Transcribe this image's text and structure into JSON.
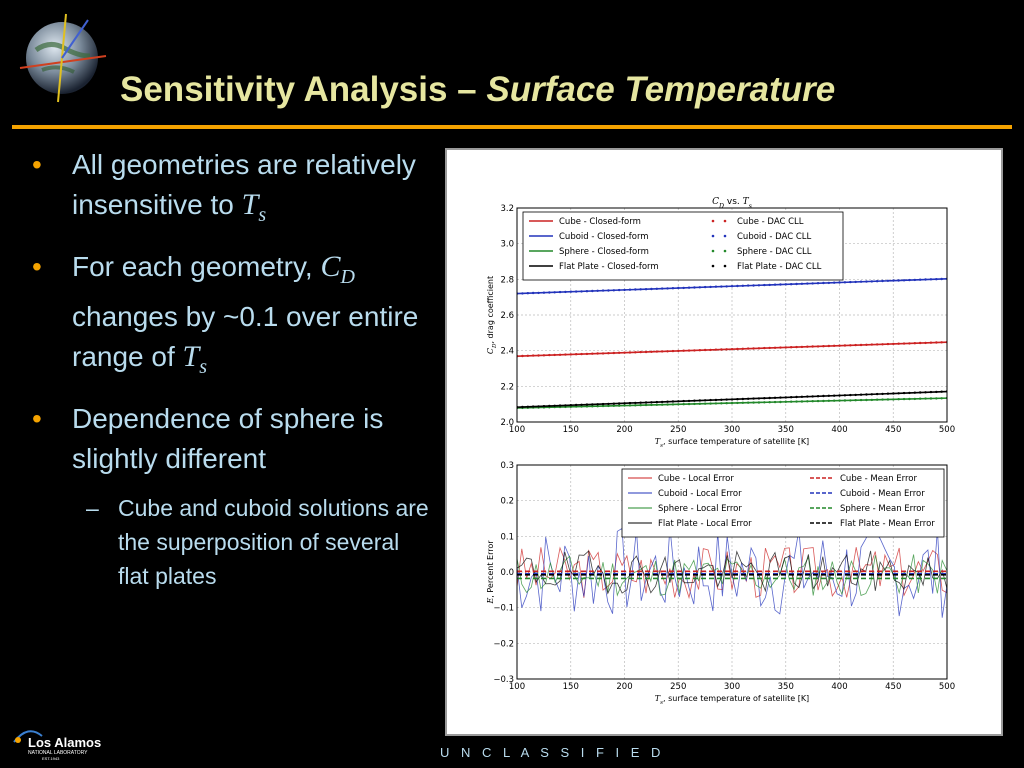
{
  "slide": {
    "title_plain": "Sensitivity Analysis – ",
    "title_italic": "Surface Temperature",
    "footer": "U N C L A S S I F I E D",
    "logo": {
      "line1": "Los Alamos",
      "line2": "NATIONAL LABORATORY",
      "line3": "EST.1943"
    }
  },
  "bullets": [
    {
      "text": "All geometries are relatively insensitive to ",
      "sym": "T",
      "sub": "s",
      "after": ""
    },
    {
      "text": "For each geometry, ",
      "sym": "C",
      "sub": "D",
      "after": " changes by ~0.1 over entire range of ",
      "sym2": "T",
      "sub2": "s"
    },
    {
      "text": "Dependence of sphere is slightly different",
      "subitems": [
        "Cube and cuboid solutions are the superposition of several flat plates"
      ]
    }
  ],
  "colors": {
    "cube": "#cc2222",
    "cuboid": "#2233bb",
    "sphere": "#22882a",
    "flat": "#000000",
    "title": "#e6e6a0",
    "text": "#b9dcee",
    "accent": "#f5a300"
  },
  "chart_data": [
    {
      "type": "line",
      "title_sym": "C",
      "title_sub": "D",
      "title_mid": " vs. ",
      "title_sym2": "T",
      "title_sub2": "s",
      "xlabel_sym": "T",
      "xlabel_sub": "s",
      "xlabel": ", surface temperature of satellite [K]",
      "ylabel_sym": "C",
      "ylabel_sub": "D",
      "ylabel": ", drag coefficient",
      "xlim": [
        100,
        500
      ],
      "ylim": [
        2.0,
        3.3
      ],
      "xticks": [
        "100",
        "150",
        "200",
        "250",
        "300",
        "350",
        "400",
        "450",
        "500"
      ],
      "yticks": [
        "2.0",
        "2.2",
        "2.4",
        "2.6",
        "2.8",
        "3.0",
        "3.2"
      ],
      "grid": true,
      "legend": "top",
      "series": [
        {
          "name": "Cube - Closed-form",
          "key": "cube",
          "style": "line",
          "x": [
            100,
            500
          ],
          "y": [
            2.4,
            2.485
          ]
        },
        {
          "name": "Cuboid - Closed-form",
          "key": "cuboid",
          "style": "line",
          "x": [
            100,
            500
          ],
          "y": [
            2.78,
            2.87
          ]
        },
        {
          "name": "Sphere - Closed-form",
          "key": "sphere",
          "style": "line",
          "x": [
            100,
            500
          ],
          "y": [
            2.085,
            2.145
          ]
        },
        {
          "name": "Flat Plate - Closed-form",
          "key": "flat",
          "style": "line",
          "x": [
            100,
            500
          ],
          "y": [
            2.09,
            2.185
          ]
        },
        {
          "name": "Cube - DAC CLL",
          "key": "cube",
          "style": "dots",
          "x": [
            100,
            500
          ],
          "y": [
            2.4,
            2.485
          ]
        },
        {
          "name": "Cuboid - DAC CLL",
          "key": "cuboid",
          "style": "dots",
          "x": [
            100,
            500
          ],
          "y": [
            2.78,
            2.87
          ]
        },
        {
          "name": "Sphere - DAC CLL",
          "key": "sphere",
          "style": "dots",
          "x": [
            100,
            500
          ],
          "y": [
            2.085,
            2.145
          ]
        },
        {
          "name": "Flat Plate - DAC CLL",
          "key": "flat",
          "style": "dots",
          "x": [
            100,
            500
          ],
          "y": [
            2.09,
            2.185
          ]
        }
      ]
    },
    {
      "type": "line",
      "xlabel_sym": "T",
      "xlabel_sub": "s",
      "xlabel": ", surface temperature of satellite [K]",
      "ylabel_sym": "E",
      "ylabel": ", Percent Error",
      "xlim": [
        100,
        500
      ],
      "ylim": [
        -0.3,
        0.3
      ],
      "xticks": [
        "100",
        "150",
        "200",
        "250",
        "300",
        "350",
        "400",
        "450",
        "500"
      ],
      "yticks": [
        "−0.3",
        "−0.2",
        "−0.1",
        "0.0",
        "0.1",
        "0.2",
        "0.3"
      ],
      "grid": true,
      "legend": "top-right",
      "series": [
        {
          "name": "Cube - Local Error",
          "key": "cube",
          "style": "noise",
          "amp": 0.075,
          "mean": 0.0,
          "seed": 3
        },
        {
          "name": "Cuboid - Local Error",
          "key": "cuboid",
          "style": "noise",
          "amp": 0.13,
          "mean": 0.0,
          "seed": 7
        },
        {
          "name": "Sphere - Local Error",
          "key": "sphere",
          "style": "noise",
          "amp": 0.06,
          "mean": -0.01,
          "seed": 11
        },
        {
          "name": "Flat Plate - Local Error",
          "key": "flat",
          "style": "noise",
          "amp": 0.06,
          "mean": 0.0,
          "seed": 19
        },
        {
          "name": "Cube - Mean Error",
          "key": "cube",
          "style": "mean",
          "y": 0.002
        },
        {
          "name": "Cuboid - Mean Error",
          "key": "cuboid",
          "style": "mean",
          "y": -0.005
        },
        {
          "name": "Sphere - Mean Error",
          "key": "sphere",
          "style": "mean",
          "y": -0.018
        },
        {
          "name": "Flat Plate - Mean Error",
          "key": "flat",
          "style": "mean",
          "y": -0.008
        }
      ]
    }
  ]
}
